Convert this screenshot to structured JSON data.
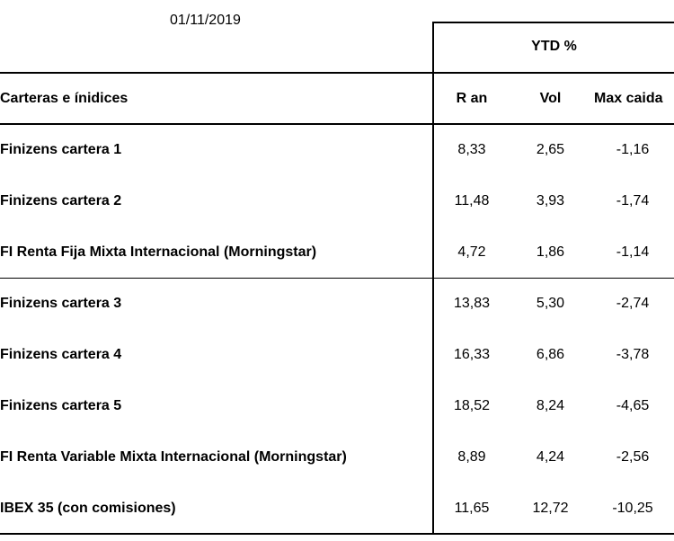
{
  "date": "01/11/2019",
  "header": {
    "group": "YTD %",
    "first_col": "Carteras e ínidices",
    "cols": [
      "R an",
      "Vol",
      "Max caida"
    ]
  },
  "rows": [
    {
      "name": "Finizens cartera 1",
      "r_an": "8,33",
      "vol": "2,65",
      "max_caida": "-1,16"
    },
    {
      "name": "Finizens cartera 2",
      "r_an": "11,48",
      "vol": "3,93",
      "max_caida": "-1,74"
    },
    {
      "name": "FI Renta Fija Mixta Internacional  (Morningstar)",
      "r_an": "4,72",
      "vol": "1,86",
      "max_caida": "-1,14"
    },
    {
      "name": "Finizens cartera 3",
      "r_an": "13,83",
      "vol": "5,30",
      "max_caida": "-2,74"
    },
    {
      "name": "Finizens cartera 4",
      "r_an": "16,33",
      "vol": "6,86",
      "max_caida": "-3,78"
    },
    {
      "name": "Finizens cartera 5",
      "r_an": "18,52",
      "vol": "8,24",
      "max_caida": "-4,65"
    },
    {
      "name": "FI Renta Variable Mixta Internacional (Morningstar)",
      "r_an": "8,89",
      "vol": "4,24",
      "max_caida": "-2,56"
    },
    {
      "name": "IBEX 35 (con comisiones)",
      "r_an": "11,65",
      "vol": "12,72",
      "max_caida": "-10,25"
    }
  ]
}
